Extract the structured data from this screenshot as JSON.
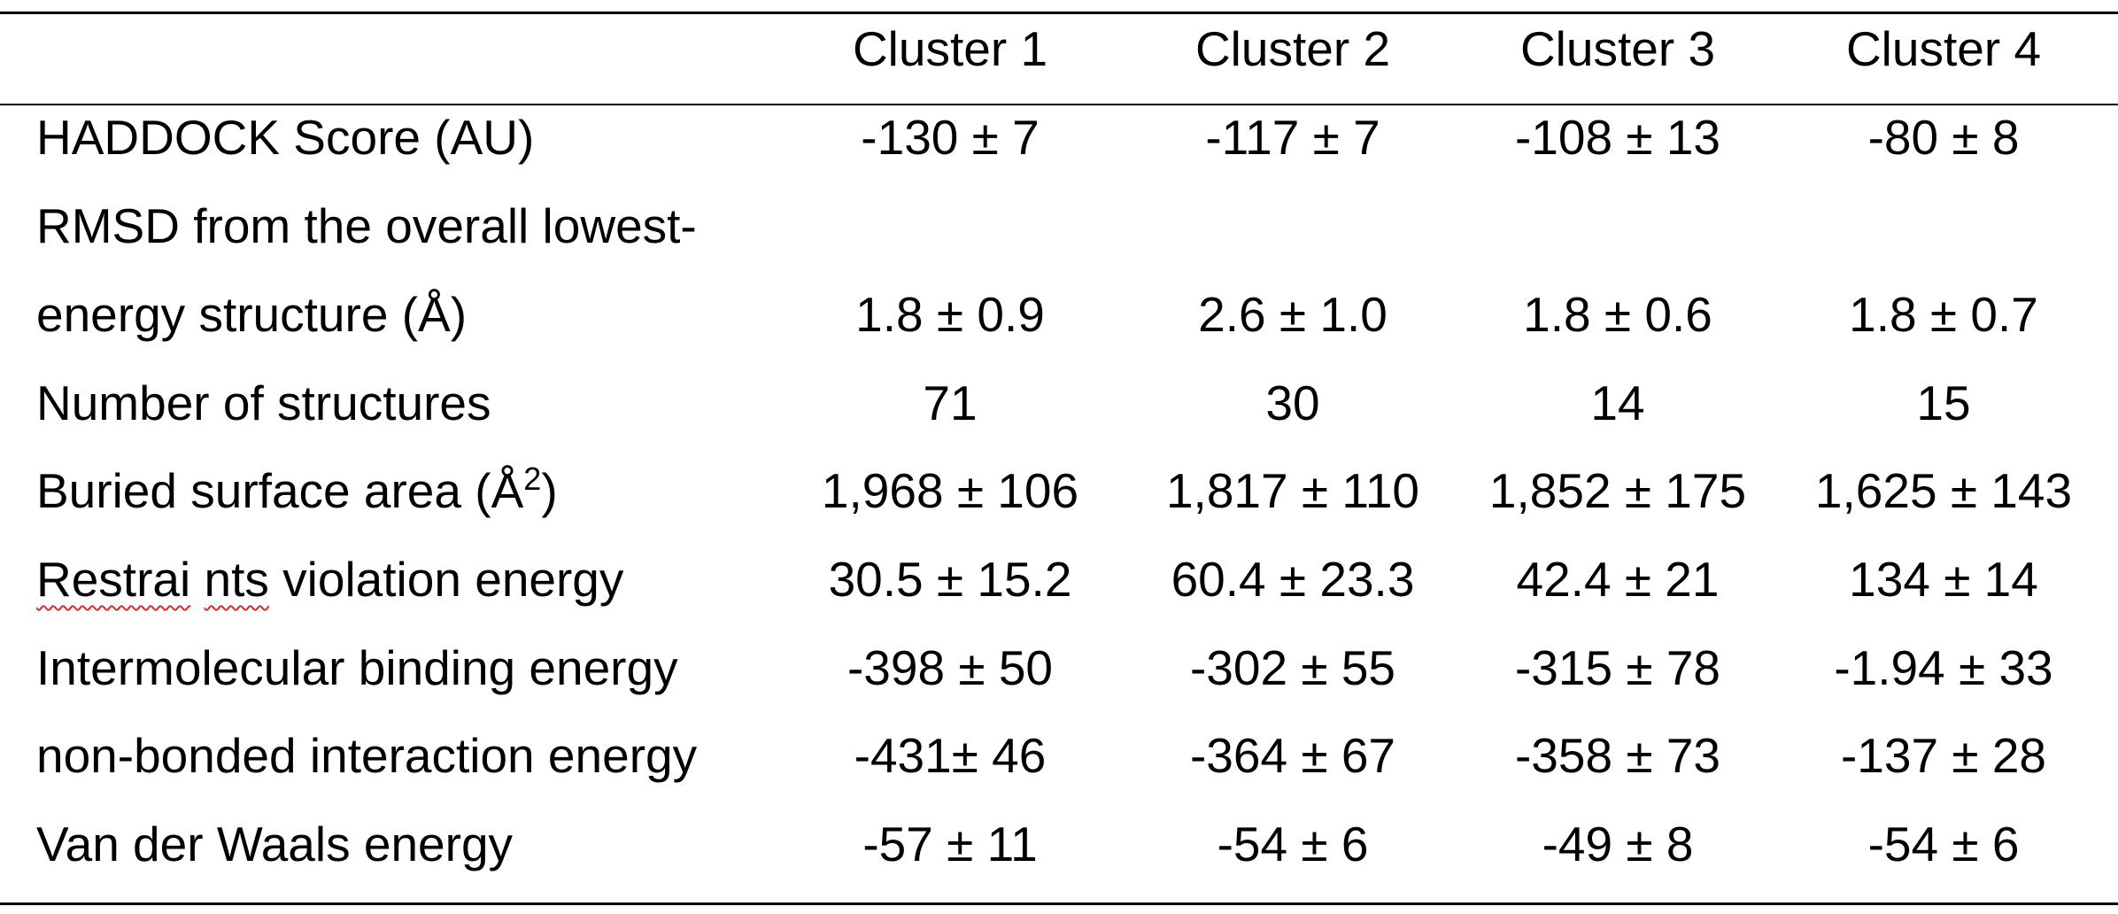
{
  "table": {
    "headers": [
      "",
      "Cluster 1",
      "Cluster 2",
      "Cluster 3",
      "Cluster 4"
    ],
    "rows": [
      {
        "label": "HADDOCK Score (AU)",
        "values": [
          "-130 ± 7",
          "-117 ± 7",
          "-108 ± 13",
          "-80 ± 8"
        ]
      },
      {
        "label_line1": "RMSD from the overall lowest-",
        "label_line2": "energy structure (Å)",
        "values": [
          "1.8 ± 0.9",
          "2.6 ± 1.0",
          "1.8 ± 0.6",
          "1.8 ± 0.7"
        ]
      },
      {
        "label": "Number of structures",
        "values": [
          "71",
          "30",
          "14",
          "15"
        ]
      },
      {
        "label": "Buried surface area (Å",
        "label_sup": "2",
        "label_after": ")",
        "values": [
          "1,968 ± 106",
          "1,817 ± 110",
          "1,852 ± 175",
          "1,625 ± 143"
        ]
      },
      {
        "label_part1": "Restrai",
        "label_part2": " ",
        "label_part3": "nts",
        "label_part4": " violation energy",
        "values": [
          "30.5 ± 15.2",
          "60.4 ± 23.3",
          "42.4 ± 21",
          "134 ± 14"
        ]
      },
      {
        "label": "Intermolecular binding energy",
        "values": [
          "-398 ± 50",
          "-302 ± 55",
          "-315 ± 78",
          "-1.94 ± 33"
        ]
      },
      {
        "label": "non-bonded interaction energy",
        "values": [
          "-431± 46",
          "-364 ± 67",
          "-358 ± 73",
          "-137 ± 28"
        ]
      },
      {
        "label": "Van der Waals energy",
        "values": [
          "-57 ± 11",
          "-54 ± 6",
          "-49 ± 8",
          "-54 ± 6"
        ]
      }
    ]
  }
}
